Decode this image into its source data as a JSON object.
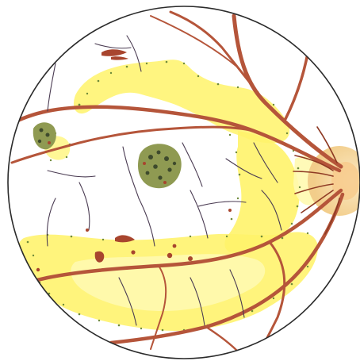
{
  "illustration": {
    "subject": "fundus-drawing",
    "colors": {
      "background": "#ffffff",
      "outline": "#2a2a2a",
      "vessel": "#b5553a",
      "vessel_dark": "#8e3a24",
      "small_vessel": "#4a3b52",
      "exudate": "#fff36a",
      "exudate_pale": "#fffab0",
      "exudate_edge": "#e6d23a",
      "stipple": "#6f8a3a",
      "pigment_green": "#8f9a52",
      "pigment_dark": "#3e4a2c",
      "hemorrhage": "#a8452e",
      "disc": "#f6d9a3"
    }
  }
}
